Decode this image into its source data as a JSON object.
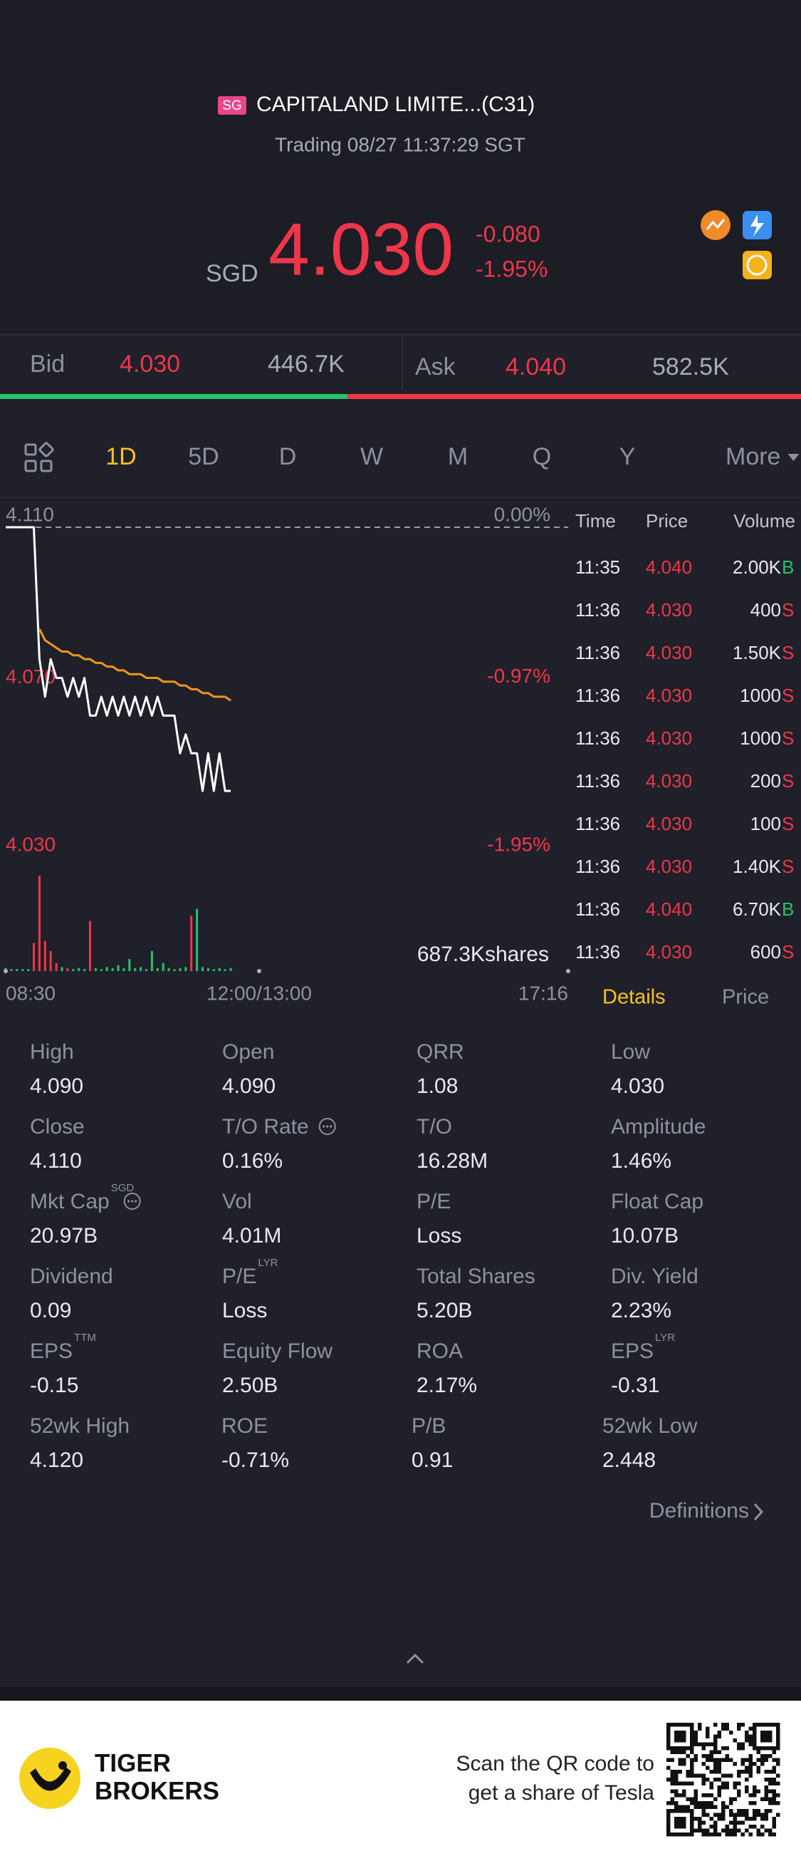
{
  "header": {
    "market": "SG",
    "title": "CAPITALAND LIMITE...(C31)",
    "status": "Trading 08/27 11:37:29 SGT"
  },
  "quote": {
    "currency": "SGD",
    "price": "4.030",
    "change": "-0.080",
    "change_pct": "-1.95%"
  },
  "order_book": {
    "bid_label": "Bid",
    "bid_price": "4.030",
    "bid_size": "446.7K",
    "ask_label": "Ask",
    "ask_price": "4.040",
    "ask_size": "582.5K"
  },
  "periods": {
    "items": [
      "1D",
      "5D",
      "D",
      "W",
      "M",
      "Q",
      "Y",
      "More"
    ],
    "selected": "1D"
  },
  "chart_data": {
    "type": "line",
    "ylim": [
      4.03,
      4.11
    ],
    "yticks": [
      {
        "value": 4.11,
        "label": "4.110"
      },
      {
        "value": 4.07,
        "label": "4.070"
      },
      {
        "value": 4.03,
        "label": "4.030"
      }
    ],
    "y2lim": [
      -1.95,
      0
    ],
    "y2ticks": [
      {
        "value": 0,
        "label": "0.00%"
      },
      {
        "value": -0.97,
        "label": "-0.97%"
      },
      {
        "value": -1.95,
        "label": "-1.95%"
      }
    ],
    "xlim": [
      0,
      100
    ],
    "x_labels": [
      "08:30",
      "12:00/13:00",
      "17:16"
    ],
    "series": [
      {
        "color": "#ffffff",
        "values": [
          4.11,
          4.11,
          4.11,
          4.11,
          4.11,
          4.11,
          4.075,
          4.065,
          4.075,
          4.07,
          4.07,
          4.065,
          4.07,
          4.065,
          4.07,
          4.06,
          4.06,
          4.065,
          4.06,
          4.065,
          4.06,
          4.065,
          4.06,
          4.065,
          4.06,
          4.065,
          4.06,
          4.065,
          4.06,
          4.06,
          4.06,
          4.05,
          4.055,
          4.05,
          4.05,
          4.04,
          4.05,
          4.04,
          4.05,
          4.04,
          4.04
        ]
      },
      {
        "color": "#f0961e",
        "values": [
          null,
          null,
          null,
          null,
          null,
          null,
          4.083,
          4.08,
          4.079,
          4.078,
          4.077,
          4.077,
          4.076,
          4.076,
          4.075,
          4.075,
          4.074,
          4.074,
          4.073,
          4.073,
          4.072,
          4.072,
          4.071,
          4.071,
          4.071,
          4.07,
          4.07,
          4.07,
          4.069,
          4.069,
          4.069,
          4.068,
          4.068,
          4.067,
          4.067,
          4.066,
          4.066,
          4.065,
          4.065,
          4.065,
          4.064
        ]
      }
    ],
    "volume": {
      "ylim": [
        0,
        100000
      ],
      "values": [
        3000,
        2000,
        2000,
        2000,
        2000,
        28000,
        95000,
        30000,
        20000,
        8000,
        4000,
        3000,
        2000,
        3000,
        2000,
        50000,
        3000,
        2000,
        4000,
        3000,
        6000,
        3000,
        12000,
        3000,
        4000,
        2000,
        20000,
        3000,
        8000,
        3000,
        2000,
        3000,
        4000,
        55000,
        62000,
        4000,
        3000,
        2000,
        3000,
        2000,
        3000
      ],
      "colors": [
        "#22c46b",
        "#22c46b",
        "#22c46b",
        "#22c46b",
        "#22c46b",
        "#f0364a",
        "#f0364a",
        "#f0364a",
        "#f0364a",
        "#f0364a",
        "#22c46b",
        "#f0364a",
        "#22c46b",
        "#22c46b",
        "#22c46b",
        "#f0364a",
        "#22c46b",
        "#22c46b",
        "#22c46b",
        "#22c46b",
        "#22c46b",
        "#22c46b",
        "#22c46b",
        "#22c46b",
        "#22c46b",
        "#22c46b",
        "#22c46b",
        "#22c46b",
        "#22c46b",
        "#22c46b",
        "#22c46b",
        "#22c46b",
        "#22c46b",
        "#f0364a",
        "#22c46b",
        "#22c46b",
        "#22c46b",
        "#22c46b",
        "#22c46b",
        "#22c46b",
        "#22c46b"
      ]
    },
    "volume_total": "687.3Kshares"
  },
  "trades": {
    "columns": [
      "Time",
      "Price",
      "Volume"
    ],
    "rows": [
      {
        "time": "11:35",
        "price": "4.040",
        "volume": "2.00K",
        "side": "B"
      },
      {
        "time": "11:36",
        "price": "4.030",
        "volume": "400",
        "side": "S"
      },
      {
        "time": "11:36",
        "price": "4.030",
        "volume": "1.50K",
        "side": "S"
      },
      {
        "time": "11:36",
        "price": "4.030",
        "volume": "1000",
        "side": "S"
      },
      {
        "time": "11:36",
        "price": "4.030",
        "volume": "1000",
        "side": "S"
      },
      {
        "time": "11:36",
        "price": "4.030",
        "volume": "200",
        "side": "S"
      },
      {
        "time": "11:36",
        "price": "4.030",
        "volume": "100",
        "side": "S"
      },
      {
        "time": "11:36",
        "price": "4.030",
        "volume": "1.40K",
        "side": "S"
      },
      {
        "time": "11:36",
        "price": "4.040",
        "volume": "6.70K",
        "side": "B"
      },
      {
        "time": "11:36",
        "price": "4.030",
        "volume": "600",
        "side": "S"
      }
    ]
  },
  "details": {
    "tabs": [
      "Details",
      "Price"
    ],
    "selected": "Details",
    "items": [
      {
        "label": "High",
        "value": "4.090"
      },
      {
        "label": "Open",
        "value": "4.090"
      },
      {
        "label": "QRR",
        "value": "1.08"
      },
      {
        "label": "Low",
        "value": "4.030"
      },
      {
        "label": "Close",
        "value": "4.110"
      },
      {
        "label": "T/O Rate",
        "value": "0.16%",
        "info": true
      },
      {
        "label": "T/O",
        "value": "16.28M"
      },
      {
        "label": "Amplitude",
        "value": "1.46%"
      },
      {
        "label": "Mkt Cap",
        "sup": "SGD",
        "value": "20.97B",
        "info": true
      },
      {
        "label": "Vol",
        "value": "4.01M"
      },
      {
        "label": "P/E",
        "value": "Loss"
      },
      {
        "label": "Float Cap",
        "value": "10.07B"
      },
      {
        "label": "Dividend",
        "value": "0.09"
      },
      {
        "label": "P/E",
        "sup": "LYR",
        "value": "Loss"
      },
      {
        "label": "Total Shares",
        "value": "5.20B"
      },
      {
        "label": "Div. Yield",
        "value": "2.23%"
      },
      {
        "label": "EPS",
        "sup": "TTM",
        "value": "-0.15"
      },
      {
        "label": "Equity Flow",
        "value": "2.50B"
      },
      {
        "label": "ROA",
        "value": "2.17%"
      },
      {
        "label": "EPS",
        "sup": "LYR",
        "value": "-0.31"
      },
      {
        "label": "52wk High",
        "value": "4.120"
      },
      {
        "label": "ROE",
        "value": "-0.71%"
      },
      {
        "label": "P/B",
        "value": "0.91"
      },
      {
        "label": "52wk Low",
        "value": "2.448"
      }
    ],
    "definitions": "Definitions"
  },
  "footer": {
    "brand": [
      "TIGER",
      "BROKERS"
    ],
    "promo": [
      "Scan the QR code to",
      "get a share of Tesla"
    ]
  }
}
